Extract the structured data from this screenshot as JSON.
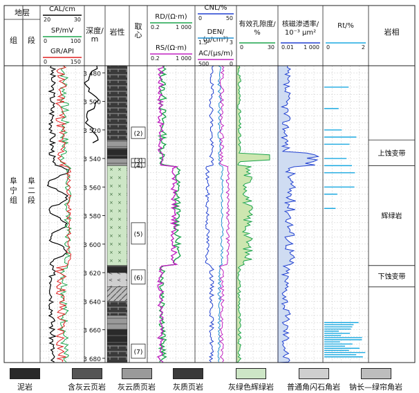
{
  "header": {
    "strata_group": "地层",
    "col_zu": "组",
    "col_duan": "段",
    "depth": "深度/\nm",
    "lithology": "岩性",
    "coring": "取\n心",
    "porosity": "有效孔隙度/\n%",
    "permeability": "核磁渗透率/\n10⁻³ μm²",
    "rt": "Rt/%",
    "facies": "岩相"
  },
  "tracks": {
    "cal": {
      "name": "CAL/cm",
      "min": "20",
      "max": "30",
      "color": "#000000"
    },
    "sp": {
      "name": "SP/mV",
      "min": "0",
      "max": "100",
      "color": "#1aa34a"
    },
    "gr": {
      "name": "GR/API",
      "min": "0",
      "max": "150",
      "color": "#e02020"
    },
    "rd": {
      "name": "RD/(Ω·m)",
      "min": "0.2",
      "max": "1 000",
      "color": "#1aa34a"
    },
    "rs": {
      "name": "RS/(Ω·m)",
      "min": "0.2",
      "max": "1 000",
      "color": "#c020c0"
    },
    "cnl": {
      "name": "CNL/%",
      "min": "0",
      "max": "50",
      "color": "#1f3fd0"
    },
    "den": {
      "name": "DEN/\n(g/cm³)",
      "min": "1.5",
      "max": "3",
      "color": "#1e8fd0"
    },
    "ac": {
      "name": "AC/(μs/m)",
      "min": "500",
      "max": "0",
      "color": "#c020c0"
    },
    "por": {
      "min": "0",
      "max": "30",
      "color": "#1aa34a"
    },
    "perm": {
      "min": "0.01",
      "max": "1 000",
      "color": "#1f3fd0"
    },
    "rt": {
      "min": "0",
      "max": "2",
      "color": "#18a8e0"
    }
  },
  "strata": {
    "formation": "阜宁组",
    "member": "阜二段"
  },
  "depth_ticks": [
    "3 480",
    "3 500",
    "3 520",
    "3 540",
    "3 560",
    "3 580",
    "3 600",
    "3 620",
    "3 640",
    "3 660",
    "3 680"
  ],
  "cores": [
    "(2)",
    "(3)",
    "(4)",
    "(5)",
    "(6)",
    "(7)"
  ],
  "facies": [
    "上蚀变带",
    "辉绿岩",
    "下蚀变带"
  ],
  "legend": [
    {
      "label": "泥岩",
      "pattern": "mudstone"
    },
    {
      "label": "含灰云页岩",
      "pattern": "calc-shale"
    },
    {
      "label": "灰云质页岩",
      "pattern": "gray-shale"
    },
    {
      "label": "灰质页岩",
      "pattern": "lime-shale"
    },
    {
      "label": "灰绿色辉绿岩",
      "pattern": "diabase"
    },
    {
      "label": "普通角闪石角岩",
      "pattern": "hornfels"
    },
    {
      "label": "钠长—绿帘角岩",
      "pattern": "albite"
    }
  ],
  "chart_data": {
    "type": "line",
    "depth_range": [
      3475,
      3683
    ],
    "depth_unit": "m",
    "intervals": {
      "upper_alteration": [
        3527,
        3545
      ],
      "diabase": [
        3545,
        3615
      ],
      "lower_alteration": [
        3615,
        3630
      ]
    }
  }
}
